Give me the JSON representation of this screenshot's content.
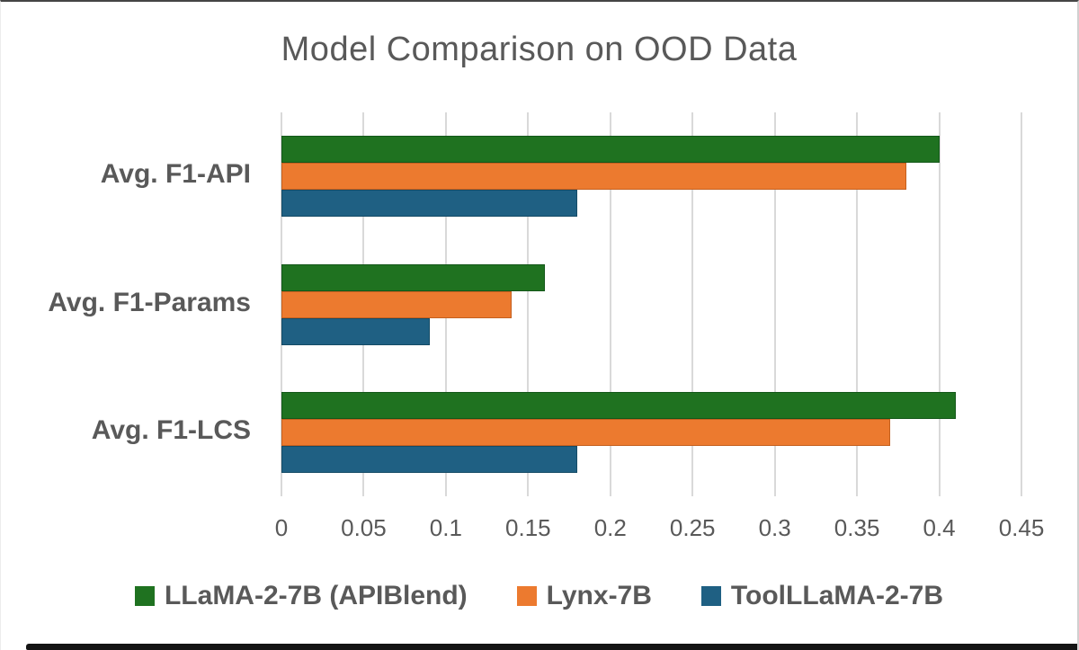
{
  "page": {
    "background": "#ffffff",
    "top_border_color": "#454545",
    "bottom_bar_color": "#141414"
  },
  "chart_data": {
    "type": "bar",
    "orientation": "horizontal",
    "title": "Model Comparison on OOD Data",
    "categories": [
      "Avg. F1-API",
      "Avg. F1-Params",
      "Avg. F1-LCS"
    ],
    "series": [
      {
        "name": "LLaMA-2-7B (APIBlend)",
        "color": "#1F7220",
        "border_color": "#14581A",
        "values": [
          0.4,
          0.16,
          0.41
        ]
      },
      {
        "name": "Lynx-7B",
        "color": "#EC7A2F",
        "border_color": "#C4601F",
        "values": [
          0.38,
          0.14,
          0.37
        ]
      },
      {
        "name": "ToolLLaMA-2-7B",
        "color": "#1F6083",
        "border_color": "#154B66",
        "values": [
          0.18,
          0.09,
          0.18
        ]
      }
    ],
    "xlim": [
      0,
      0.45
    ],
    "x_ticks": [
      0,
      0.05,
      0.1,
      0.15,
      0.2,
      0.25,
      0.3,
      0.35,
      0.4,
      0.45
    ],
    "x_tick_labels": [
      "0",
      "0.05",
      "0.1",
      "0.15",
      "0.2",
      "0.25",
      "0.3",
      "0.35",
      "0.4",
      "0.45"
    ],
    "gridlines": true,
    "gridline_color": "#D9D9D9",
    "text_color": "#595959",
    "legend_position": "bottom"
  }
}
